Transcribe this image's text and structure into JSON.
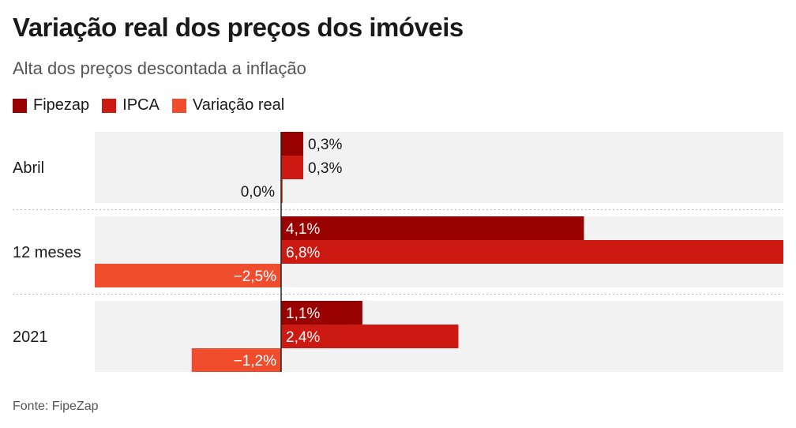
{
  "title": "Variação real dos preços dos imóveis",
  "subtitle": "Alta dos preços descontada a inflação",
  "source": "Fonte: FipeZap",
  "colors": {
    "fipezap": "#990000",
    "ipca": "#cc1a12",
    "variacao_real": "#f04d2f",
    "band": "#f2f2f2"
  },
  "chart_data": {
    "type": "bar",
    "orientation": "horizontal",
    "categories": [
      "Abril",
      "12 meses",
      "2021"
    ],
    "series": [
      {
        "name": "Fipezap",
        "values": [
          0.3,
          4.1,
          1.1
        ],
        "labels": [
          "0,3%",
          "4,1%",
          "1,1%"
        ]
      },
      {
        "name": "IPCA",
        "values": [
          0.3,
          6.8,
          2.4
        ],
        "labels": [
          "0,3%",
          "6,8%",
          "2,4%"
        ]
      },
      {
        "name": "Variação real",
        "values": [
          0.0,
          -2.5,
          -1.2
        ],
        "labels": [
          "0,0%",
          "−2,5%",
          "−1,2%"
        ]
      }
    ],
    "xlim": [
      -2.5,
      6.8
    ],
    "legend_position": "top-left"
  }
}
